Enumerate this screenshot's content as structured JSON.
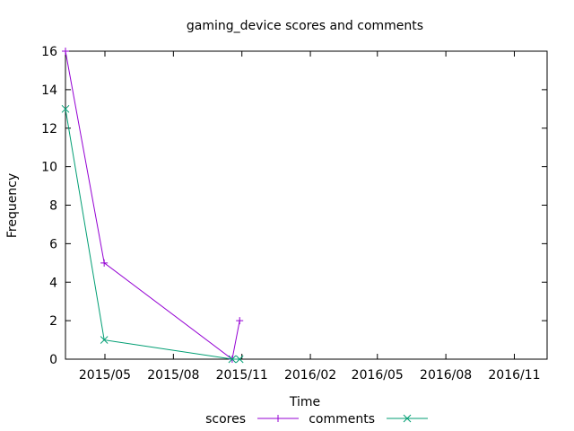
{
  "chart_data": {
    "type": "line",
    "title": "gaming_device scores and comments",
    "xlabel": "Time",
    "ylabel": "Frequency",
    "x_axis": {
      "type": "date",
      "range": [
        "2015-03-09",
        "2016-12-15"
      ],
      "ticks": [
        {
          "date": "2015-05-01",
          "label": "2015/05"
        },
        {
          "date": "2015-08-01",
          "label": "2015/08"
        },
        {
          "date": "2015-11-01",
          "label": "2015/11"
        },
        {
          "date": "2016-02-01",
          "label": "2016/02"
        },
        {
          "date": "2016-05-01",
          "label": "2016/05"
        },
        {
          "date": "2016-08-01",
          "label": "2016/08"
        },
        {
          "date": "2016-11-01",
          "label": "2016/11"
        }
      ]
    },
    "y_axis": {
      "range": [
        0,
        16
      ],
      "ticks": [
        0,
        2,
        4,
        6,
        8,
        10,
        12,
        14,
        16
      ]
    },
    "grid": false,
    "legend_placement": "bottom-center",
    "series": [
      {
        "name": "scores",
        "color": "#9400d3",
        "marker": "plus",
        "points": [
          {
            "x": "2015-03-09",
            "y": 16
          },
          {
            "x": "2015-04-30",
            "y": 5
          },
          {
            "x": "2015-10-19",
            "y": 0
          },
          {
            "x": "2015-10-29",
            "y": 2
          }
        ]
      },
      {
        "name": "comments",
        "color": "#009e73",
        "marker": "cross",
        "points": [
          {
            "x": "2015-03-09",
            "y": 13
          },
          {
            "x": "2015-04-30",
            "y": 1
          },
          {
            "x": "2015-10-19",
            "y": 0
          },
          {
            "x": "2015-10-29",
            "y": 0
          }
        ]
      }
    ]
  }
}
